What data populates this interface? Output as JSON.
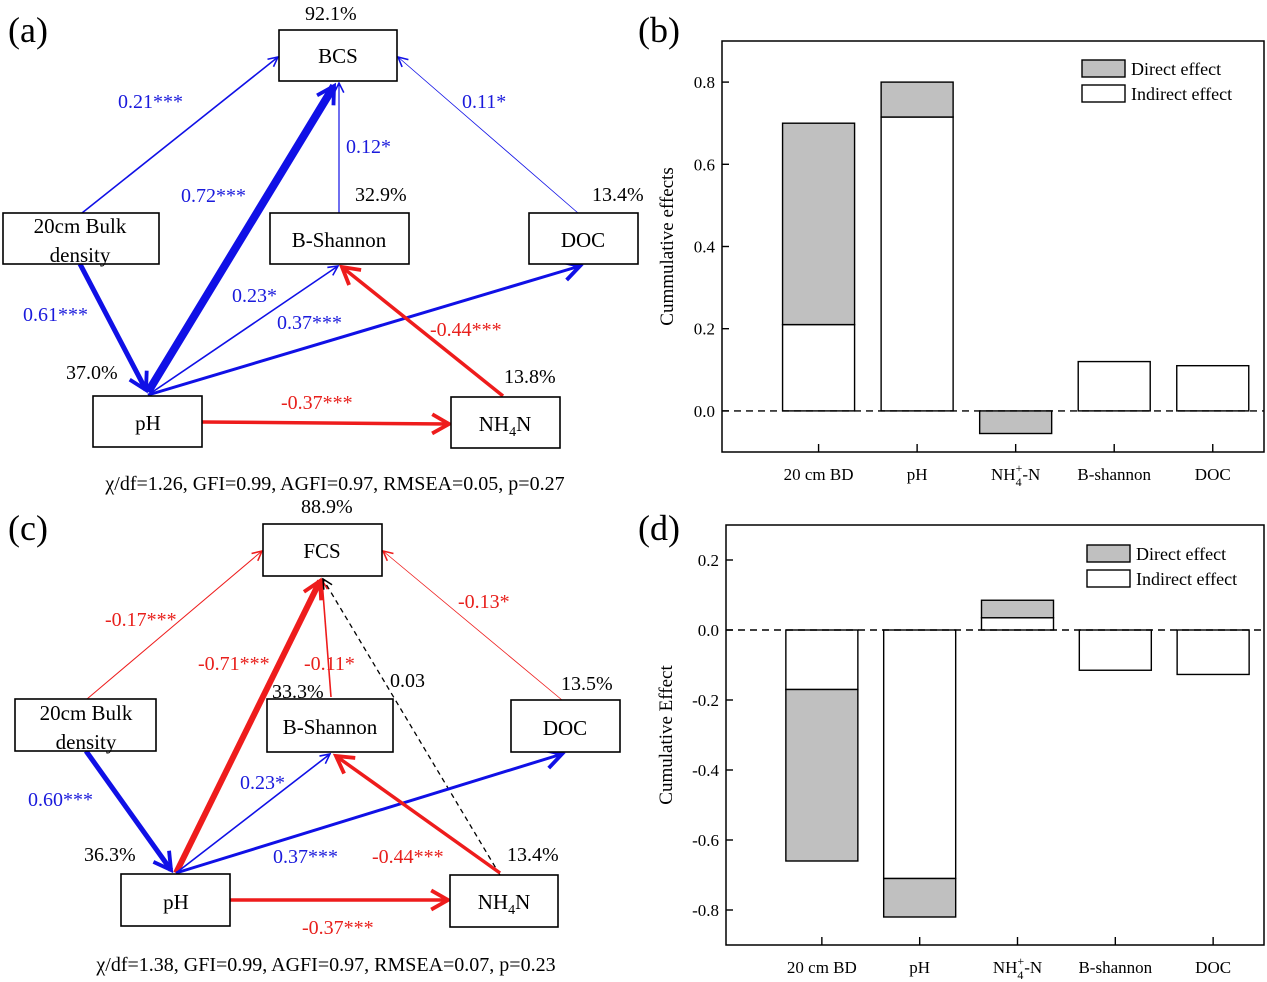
{
  "panels": {
    "a": "(a)",
    "b": "(b)",
    "c": "(c)",
    "d": "(d)"
  },
  "diagram_a": {
    "target": "BCS",
    "target_r2": "92.1%",
    "nodes": {
      "bd_line1": "20cm Bulk",
      "bd_line2": "density",
      "bshannon": "B-Shannon",
      "doc": "DOC",
      "ph": "pH",
      "nh4": {
        "base": "NH",
        "sub": "4",
        "tail": "N"
      }
    },
    "r2": {
      "bshannon": "32.9%",
      "doc": "13.4%",
      "ph": "37.0%",
      "nh4": "13.8%"
    },
    "edges": {
      "bd_target": "0.21***",
      "ph_target": "0.72***",
      "bshannon_target": "0.12*",
      "doc_target": "0.11*",
      "bd_ph": "0.61***",
      "ph_bshannon": "0.23*",
      "ph_doc": "0.37***",
      "nh4_bshannon": "-0.44***",
      "ph_nh4": "-0.37***"
    },
    "fit": "χ/df=1.26,  GFI=0.99,  AGFI=0.97,  RMSEA=0.05,  p=0.27"
  },
  "diagram_c": {
    "target": "FCS",
    "target_r2": "88.9%",
    "nodes": {
      "bd_line1": "20cm Bulk",
      "bd_line2": "density",
      "bshannon": "B-Shannon",
      "doc": "DOC",
      "ph": "pH",
      "nh4": {
        "base": "NH",
        "sub": "4",
        "tail": "N"
      }
    },
    "r2": {
      "bshannon": "33.3%",
      "doc": "13.5%",
      "ph": "36.3%",
      "nh4": "13.4%"
    },
    "edges": {
      "bd_target": "-0.17***",
      "ph_target": "-0.71***",
      "bshannon_target": "-0.11*",
      "nh4_target": "0.03",
      "doc_target": "-0.13*",
      "bd_ph": "0.60***",
      "ph_bshannon": "0.23*",
      "ph_doc": "0.37***",
      "nh4_bshannon": "-0.44***",
      "ph_nh4": "-0.37***"
    },
    "fit": "χ/df=1.38,  GFI=0.99,  AGFI=0.97,  RMSEA=0.07,  p=0.23"
  },
  "colors": {
    "positive": "#1010e6",
    "negative": "#ee1c1c",
    "direct_fill": "#c0c0c0",
    "indirect_fill": "#ffffff"
  },
  "chart_data": [
    {
      "type": "bar",
      "stacked": true,
      "panel": "(b)",
      "categories": [
        "20 cm BD",
        "pH",
        "NH4+-N",
        "B-shannon",
        "DOC"
      ],
      "series": [
        {
          "name": "Indirect effect",
          "values": [
            0.21,
            0.715,
            0,
            0.12,
            0.11
          ]
        },
        {
          "name": "Direct effect",
          "values": [
            0.49,
            0.085,
            -0.055,
            0,
            0
          ]
        }
      ],
      "xlabel": "",
      "ylabel": "Cummulative effects",
      "ylim": [
        -0.1,
        0.9
      ],
      "yticks": [
        "0.0",
        "0.2",
        "0.4",
        "0.6",
        "0.8"
      ],
      "legend": "top-right",
      "zero_line": "dashed"
    },
    {
      "type": "bar",
      "stacked": true,
      "panel": "(d)",
      "categories": [
        "20 cm BD",
        "pH",
        "NH4+-N",
        "B-shannon",
        "DOC"
      ],
      "series": [
        {
          "name": "Indirect effect",
          "values": [
            -0.17,
            -0.71,
            0.035,
            -0.115,
            -0.127
          ]
        },
        {
          "name": "Direct effect",
          "values": [
            -0.49,
            -0.11,
            0.05,
            0,
            0
          ]
        }
      ],
      "xlabel": "",
      "ylabel": "Cumulative Effect",
      "ylim": [
        -0.9,
        0.3
      ],
      "yticks": [
        "-0.8",
        "-0.6",
        "-0.4",
        "-0.2",
        "0.0",
        "0.2"
      ],
      "legend": "top-right",
      "zero_line": "dashed"
    }
  ]
}
